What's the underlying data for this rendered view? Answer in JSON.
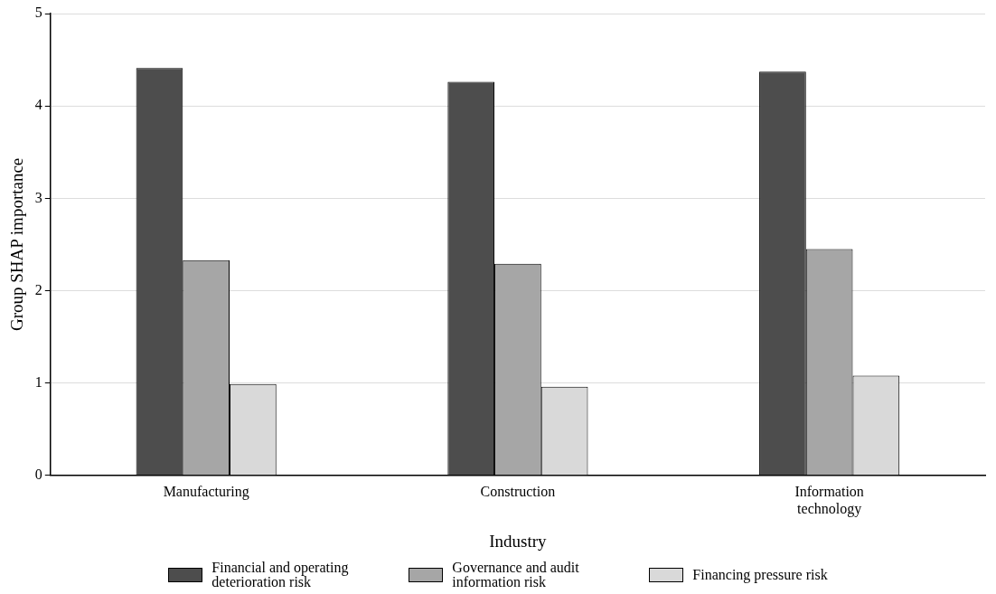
{
  "chart_data": {
    "type": "bar",
    "xlabel": "Industry",
    "ylabel": "Group SHAP importance",
    "categories": [
      "Manufacturing",
      "Construction",
      "Information technology"
    ],
    "series": [
      {
        "name": "Financial and operating deterioration risk",
        "color": "#4d4d4d",
        "values": [
          4.41,
          4.26,
          4.37
        ]
      },
      {
        "name": "Governance and audit information risk",
        "color": "#a6a6a6",
        "values": [
          2.33,
          2.29,
          2.45
        ]
      },
      {
        "name": "Financing pressure risk",
        "color": "#d9d9d9",
        "values": [
          0.99,
          0.96,
          1.08
        ]
      }
    ],
    "ylim": [
      0,
      5
    ],
    "yticks": [
      0,
      1,
      2,
      3,
      4,
      5
    ],
    "grid": "y",
    "legend": "bottom"
  }
}
